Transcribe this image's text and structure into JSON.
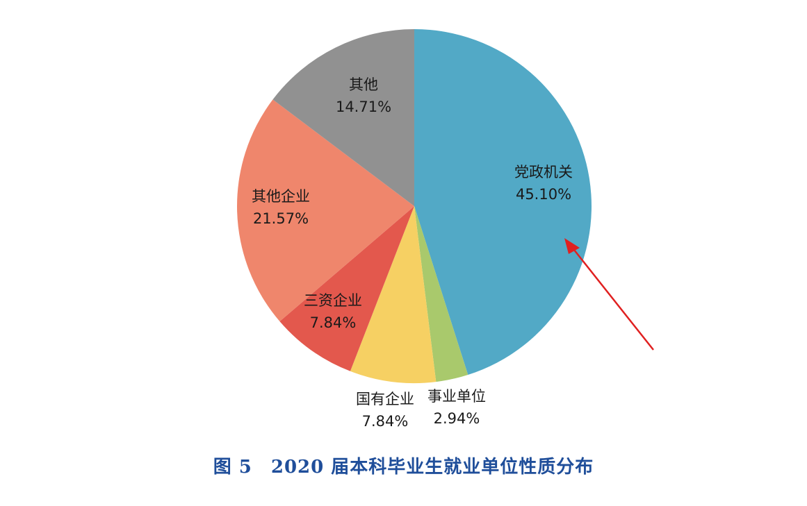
{
  "chart_data": {
    "type": "pie",
    "title": "图 5　2020 届本科毕业生就业单位性质分布",
    "start_angle_deg": 0,
    "direction": "clockwise",
    "slices": [
      {
        "label": "党政机关",
        "value": 45.1,
        "value_text": "45.10%",
        "color": "#52a9c6"
      },
      {
        "label": "事业单位",
        "value": 2.94,
        "value_text": "2.94%",
        "color": "#a9c96c"
      },
      {
        "label": "国有企业",
        "value": 7.84,
        "value_text": "7.84%",
        "color": "#f6d063"
      },
      {
        "label": "三资企业",
        "value": 7.84,
        "value_text": "7.84%",
        "color": "#e3584d"
      },
      {
        "label": "其他企业",
        "value": 21.57,
        "value_text": "21.57%",
        "color": "#ef866c"
      },
      {
        "label": "其他",
        "value": 14.71,
        "value_text": "14.71%",
        "color": "#919191"
      }
    ],
    "annotation": {
      "type": "arrow",
      "color": "#e02020",
      "points_to": "党政机关"
    }
  }
}
